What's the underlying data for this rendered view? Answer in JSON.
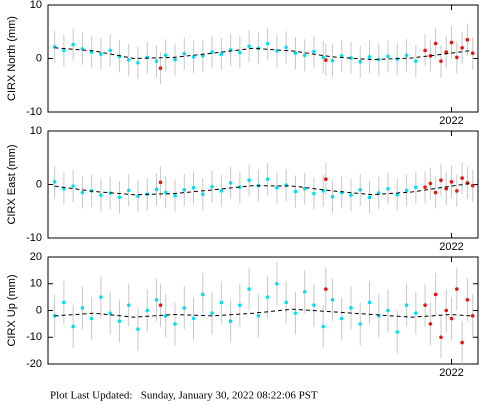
{
  "chart_data": [
    {
      "type": "scatter",
      "ylabel": "CIRX North (mm)",
      "xlim": [
        2018.95,
        2022.2
      ],
      "xticks": [
        2022
      ],
      "ylim": [
        -10,
        10
      ],
      "yticks": [
        -10,
        0,
        10
      ],
      "series": [
        {
          "color": "#00e0f0",
          "error": 3,
          "x": [
            2019.0,
            2019.07,
            2019.14,
            2019.21,
            2019.28,
            2019.35,
            2019.42,
            2019.49,
            2019.56,
            2019.63,
            2019.7,
            2019.77,
            2019.84,
            2019.91,
            2019.98,
            2020.05,
            2020.12,
            2020.19,
            2020.26,
            2020.33,
            2020.4,
            2020.47,
            2020.54,
            2020.61,
            2020.68,
            2020.75,
            2020.82,
            2020.89,
            2020.96,
            2021.03,
            2021.1,
            2021.17,
            2021.24,
            2021.31,
            2021.38,
            2021.45,
            2021.52,
            2021.59,
            2021.66,
            2021.73
          ],
          "values": [
            2.2,
            1.5,
            2.6,
            1.8,
            1.2,
            0.8,
            1.5,
            0.4,
            -0.3,
            -0.8,
            0.2,
            -0.5,
            0.6,
            -0.2,
            0.9,
            0.3,
            0.5,
            1.2,
            0.8,
            1.6,
            1.1,
            2.3,
            1.9,
            2.8,
            1.4,
            2.1,
            1.0,
            0.6,
            1.3,
            0.2,
            -0.4,
            0.5,
            0.1,
            -0.6,
            0.3,
            -0.2,
            0.4,
            -0.1,
            0.6,
            -0.5
          ]
        },
        {
          "color": "#ee1111",
          "error": 3,
          "x": [
            2021.8,
            2021.84,
            2021.88,
            2021.92,
            2021.96,
            2022.0,
            2022.04,
            2022.08,
            2022.12,
            2022.16,
            2019.8,
            2021.05
          ],
          "values": [
            1.5,
            0.5,
            2.8,
            -0.5,
            1.2,
            3.0,
            0.2,
            2.0,
            3.5,
            1.0,
            -1.8,
            -0.3
          ]
        },
        {
          "color": "#000000",
          "line": "dashed",
          "x": [
            2019.0,
            2019.3,
            2019.6,
            2019.9,
            2020.2,
            2020.5,
            2020.8,
            2021.1,
            2021.4,
            2021.7,
            2022.0,
            2022.15
          ],
          "values": [
            2.0,
            1.4,
            0.0,
            0.2,
            1.0,
            1.9,
            1.4,
            0.3,
            -0.2,
            0.1,
            1.0,
            1.5
          ]
        }
      ]
    },
    {
      "type": "scatter",
      "ylabel": "CIRX East (mm)",
      "xlim": [
        2018.95,
        2022.2
      ],
      "xticks": [
        2022
      ],
      "ylim": [
        -10,
        10
      ],
      "yticks": [
        -10,
        0,
        10
      ],
      "series": [
        {
          "color": "#00e0f0",
          "error": 3,
          "x": [
            2019.0,
            2019.07,
            2019.14,
            2019.21,
            2019.28,
            2019.35,
            2019.42,
            2019.49,
            2019.56,
            2019.63,
            2019.7,
            2019.77,
            2019.84,
            2019.91,
            2019.98,
            2020.05,
            2020.12,
            2020.19,
            2020.26,
            2020.33,
            2020.4,
            2020.47,
            2020.54,
            2020.61,
            2020.68,
            2020.75,
            2020.82,
            2020.89,
            2020.96,
            2021.03,
            2021.1,
            2021.17,
            2021.24,
            2021.31,
            2021.38,
            2021.45,
            2021.52,
            2021.59,
            2021.66,
            2021.73
          ],
          "values": [
            0.5,
            -0.8,
            -0.3,
            -1.5,
            -1.2,
            -2.0,
            -1.6,
            -2.4,
            -1.1,
            -2.2,
            -1.8,
            -0.9,
            -1.5,
            -2.1,
            -1.0,
            -0.6,
            -1.8,
            -0.4,
            -1.2,
            0.3,
            -0.5,
            0.8,
            -0.2,
            1.0,
            -0.6,
            -0.1,
            -1.3,
            -0.8,
            -1.7,
            -1.2,
            -2.3,
            -1.5,
            -2.0,
            -1.0,
            -2.4,
            -1.6,
            -0.8,
            -1.9,
            -1.1,
            -0.5
          ]
        },
        {
          "color": "#ee1111",
          "error": 3,
          "x": [
            2021.8,
            2021.84,
            2021.88,
            2021.92,
            2021.96,
            2022.0,
            2022.04,
            2022.08,
            2022.12,
            2022.16,
            2019.8,
            2021.05
          ],
          "values": [
            -0.5,
            0.2,
            -1.5,
            0.8,
            -0.8,
            0.5,
            -1.2,
            1.2,
            0.3,
            -0.2,
            0.4,
            1.0
          ]
        },
        {
          "color": "#000000",
          "line": "dashed",
          "x": [
            2019.0,
            2019.3,
            2019.6,
            2019.9,
            2020.2,
            2020.5,
            2020.8,
            2021.1,
            2021.4,
            2021.7,
            2022.0,
            2022.15
          ],
          "values": [
            -0.3,
            -1.3,
            -1.9,
            -1.7,
            -1.0,
            -0.2,
            -0.3,
            -1.2,
            -1.9,
            -1.4,
            -0.3,
            0.2
          ]
        }
      ]
    },
    {
      "type": "scatter",
      "ylabel": "CIRX Up (mm)",
      "xlim": [
        2018.95,
        2022.2
      ],
      "xticks": [
        2022
      ],
      "ylim": [
        -20,
        20
      ],
      "yticks": [
        -20,
        -10,
        0,
        10,
        20
      ],
      "series": [
        {
          "color": "#00e0f0",
          "error": 8,
          "x": [
            2019.0,
            2019.07,
            2019.14,
            2019.21,
            2019.28,
            2019.35,
            2019.42,
            2019.49,
            2019.56,
            2019.63,
            2019.7,
            2019.77,
            2019.84,
            2019.91,
            2019.98,
            2020.05,
            2020.12,
            2020.19,
            2020.26,
            2020.33,
            2020.4,
            2020.47,
            2020.54,
            2020.61,
            2020.68,
            2020.75,
            2020.82,
            2020.89,
            2020.96,
            2021.03,
            2021.1,
            2021.17,
            2021.24,
            2021.31,
            2021.38,
            2021.45,
            2021.52,
            2021.59,
            2021.66,
            2021.73
          ],
          "values": [
            -2,
            3,
            -6,
            1,
            -3,
            5,
            -1,
            -4,
            2,
            -7,
            0,
            4,
            -2,
            -5,
            1,
            -3,
            6,
            -1,
            3,
            -4,
            2,
            8,
            -2,
            5,
            10,
            3,
            -1,
            7,
            2,
            -6,
            4,
            -3,
            1,
            -5,
            3,
            -2,
            0,
            -8,
            2,
            -1
          ]
        },
        {
          "color": "#ee1111",
          "error": 8,
          "x": [
            2021.8,
            2021.84,
            2021.88,
            2021.92,
            2021.96,
            2022.0,
            2022.04,
            2022.08,
            2022.12,
            2022.16,
            2019.8,
            2021.05
          ],
          "values": [
            2,
            -5,
            6,
            -10,
            0,
            -3,
            8,
            -12,
            4,
            -2,
            2,
            8
          ]
        },
        {
          "color": "#000000",
          "line": "dashed",
          "x": [
            2019.0,
            2019.3,
            2019.6,
            2019.9,
            2020.2,
            2020.5,
            2020.8,
            2021.1,
            2021.4,
            2021.7,
            2022.0,
            2022.15
          ],
          "values": [
            -2.0,
            -1.0,
            -2.5,
            -1.5,
            -2.0,
            -1.0,
            0.5,
            -0.5,
            -1.5,
            -2.5,
            -1.5,
            -2.0
          ]
        }
      ]
    }
  ],
  "footer": "Plot Last Updated:   Sunday, January 30, 2022 08:22:06 PST"
}
